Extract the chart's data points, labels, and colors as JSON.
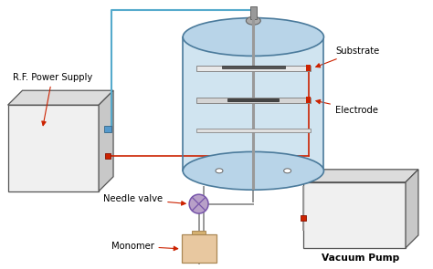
{
  "background_color": "#ffffff",
  "labels": {
    "rf_power": "R.F. Power Supply",
    "needle_valve": "Needle valve",
    "monomer": "Monomer",
    "substrate": "Substrate",
    "electrode": "Electrode",
    "vacuum_pump": "Vacuum Pump"
  },
  "colors": {
    "box_face_front": "#f0f0f0",
    "box_face_top": "#dcdcdc",
    "box_face_right": "#c8c8c8",
    "box_edge": "#555555",
    "cyl_top_fill": "#b8d4e8",
    "cyl_body_fill": "#d0e4f0",
    "cyl_edge": "#4a7a9b",
    "elec_light": "#e8e8e8",
    "elec_dark": "#666666",
    "red_line": "#cc2200",
    "blue_line": "#55aacc",
    "gray_line": "#888888",
    "valve_fill": "#b8a0c8",
    "valve_edge": "#7755aa",
    "monomer_fill": "#e8c8a0",
    "monomer_edge": "#aa8855",
    "text_color": "#000000",
    "arrow_color": "#cc2200",
    "knob_fill": "#aaaaaa",
    "bolt_fill": "#aaaaaa"
  },
  "layout": {
    "figw": 4.74,
    "figh": 2.95,
    "dpi": 100,
    "xlim": [
      0,
      9.48
    ],
    "ylim": [
      0,
      5.9
    ]
  }
}
